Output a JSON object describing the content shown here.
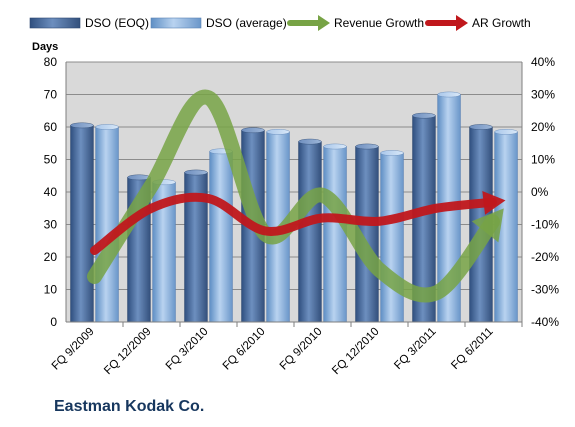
{
  "company": "Eastman Kodak Co.",
  "chart_data": {
    "type": "bar",
    "categories": [
      "FQ 9/2009",
      "FQ 12/2009",
      "FQ 3/2010",
      "FQ 6/2010",
      "FQ 9/2010",
      "FQ 12/2010",
      "FQ 3/2011",
      "FQ 6/2011"
    ],
    "series": [
      {
        "name": "DSO (EOQ)",
        "type": "bar",
        "axis": "left",
        "values": [
          60.5,
          44.5,
          46,
          59,
          55.5,
          54,
          63.5,
          60
        ]
      },
      {
        "name": "DSO (average)",
        "type": "bar",
        "axis": "left",
        "values": [
          60,
          43,
          52.5,
          58.5,
          54,
          52,
          70,
          58.5
        ]
      },
      {
        "name": "Revenue Growth",
        "type": "line",
        "axis": "right",
        "values": [
          -26,
          2,
          29,
          -13,
          -1,
          -24,
          -31,
          -9
        ]
      },
      {
        "name": "AR Growth",
        "type": "line",
        "axis": "right",
        "values": [
          -18,
          -5,
          -2,
          -12,
          -8,
          -9,
          -5,
          -3
        ]
      }
    ],
    "ylabel": "Days",
    "ylim": [
      0,
      80
    ],
    "yticks": [
      "0",
      "10",
      "20",
      "30",
      "40",
      "50",
      "60",
      "70",
      "80"
    ],
    "y2lim": [
      -40,
      40
    ],
    "y2ticks": [
      "-40%",
      "-30%",
      "-20%",
      "-10%",
      "0%",
      "10%",
      "20%",
      "30%",
      "40%"
    ],
    "grid": true,
    "legend_position": "top",
    "colors": {
      "dso_eoq": "#4f6f9f",
      "dso_avg": "#8db4e2",
      "revenue_growth": "#77a345",
      "ar_growth": "#c0171c",
      "plot_bg": "#d9d9d9",
      "title": "#17375e"
    }
  }
}
